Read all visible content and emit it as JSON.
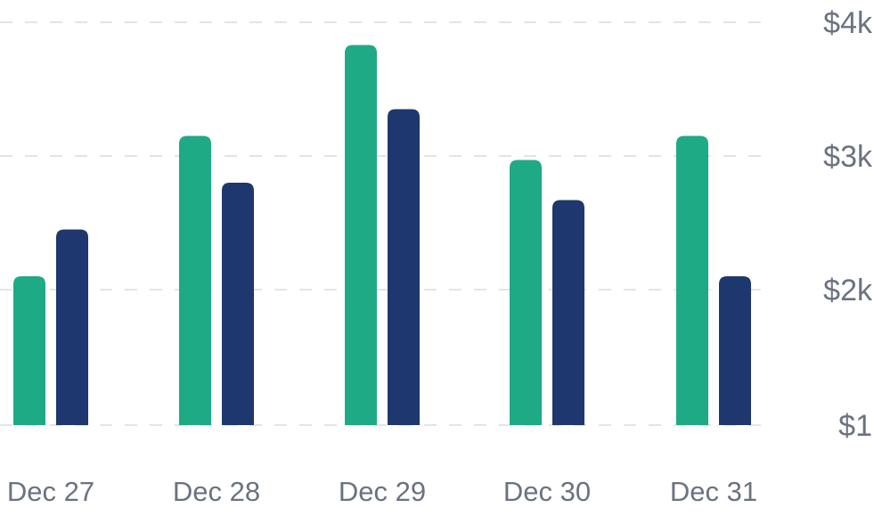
{
  "chart_data": {
    "type": "bar",
    "title": "",
    "xlabel": "",
    "ylabel": "",
    "categories": [
      "Dec 27",
      "Dec 28",
      "Dec 29",
      "Dec 30",
      "Dec 31"
    ],
    "series": [
      {
        "color": "#1faa86",
        "values": [
          2100,
          3150,
          3830,
          2970,
          3150
        ]
      },
      {
        "color": "#1e376e",
        "values": [
          2450,
          2800,
          3350,
          2670,
          2100
        ]
      }
    ],
    "y_ticks": [
      {
        "value": 1,
        "label": "$1"
      },
      {
        "value": 2000,
        "label": "$2k"
      },
      {
        "value": 3000,
        "label": "$3k"
      },
      {
        "value": 4000,
        "label": "$4k"
      }
    ],
    "ylim": [
      1,
      4000
    ],
    "y_axis_position": "right",
    "grid": true,
    "legend": "none"
  }
}
